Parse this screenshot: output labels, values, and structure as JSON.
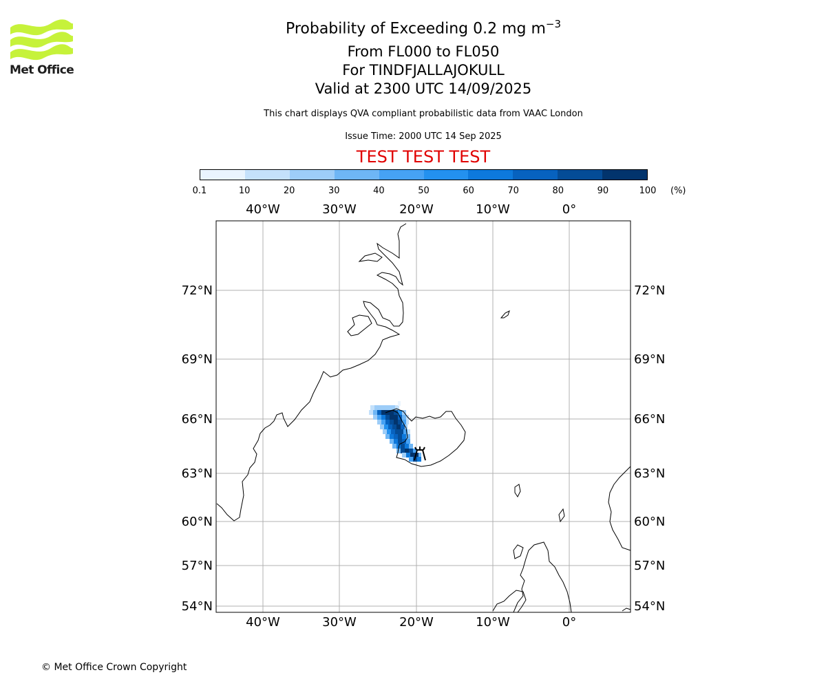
{
  "header": {
    "title_main": "Probability of Exceeding 0.2 mg m",
    "title_sup": "−3",
    "level_range": "From FL000 to FL050",
    "volcano": "For TINDFJALLAJOKULL",
    "valid": "Valid at 2300 UTC 14/09/2025",
    "description": "This chart displays QVA compliant probabilistic data from VAAC London",
    "issue_time": "Issue Time: 2000 UTC 14 Sep 2025",
    "test_banner": "TEST TEST TEST",
    "test_color": "#e00000"
  },
  "logo": {
    "text": "Met Office",
    "icon": "met-office-wave-logo",
    "color": "#c6f23a"
  },
  "colorbar": {
    "ticks": [
      "0.1",
      "10",
      "20",
      "30",
      "40",
      "50",
      "60",
      "70",
      "80",
      "90",
      "100"
    ],
    "unit": "(%)",
    "colors": [
      "#e9f4fe",
      "#c4e1fb",
      "#9dcdf8",
      "#6eb6f5",
      "#46a2f4",
      "#2391ef",
      "#0d79dc",
      "#0762bf",
      "#044c97",
      "#02346d"
    ]
  },
  "map": {
    "lon_labels": [
      "40°W",
      "30°W",
      "20°W",
      "10°W",
      "0°"
    ],
    "lat_labels": [
      "72°N",
      "69°N",
      "66°N",
      "63°N",
      "60°N",
      "57°N",
      "54°N"
    ],
    "volcano_marker": "volcano-symbol-icon"
  },
  "footer": {
    "copyright": "© Met Office Crown Copyright"
  }
}
